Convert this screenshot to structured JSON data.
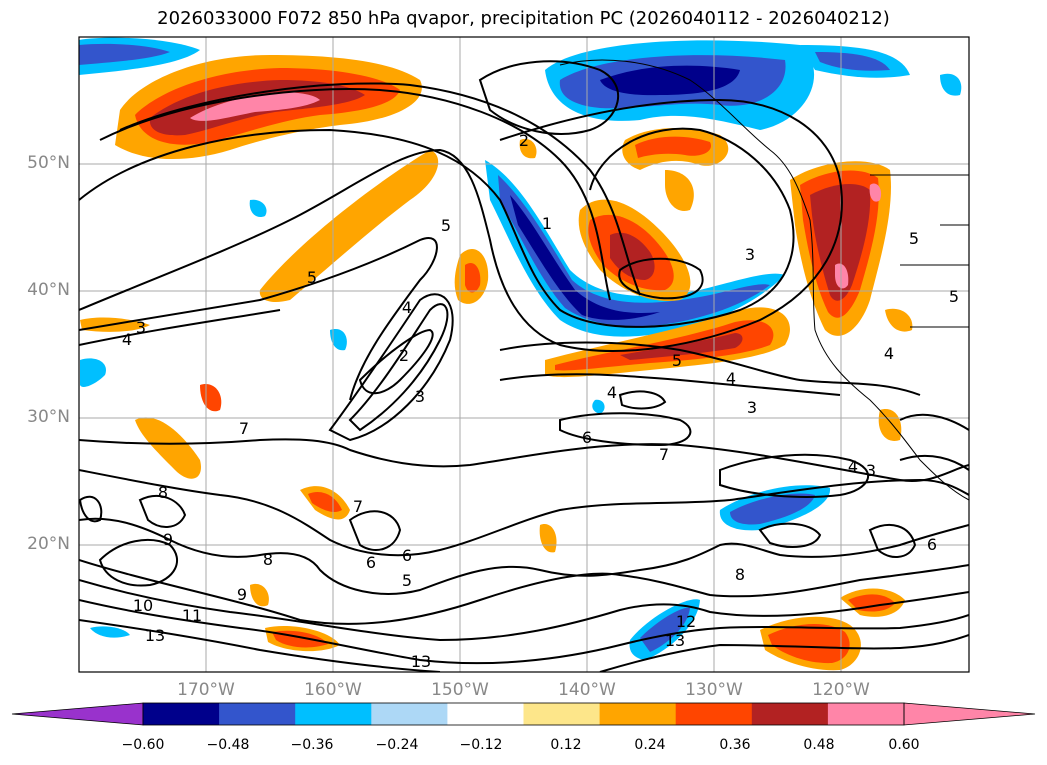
{
  "title": "2026033000 F072 850 hPa qvapor, precipitation PC (2026040112 - 2026040212)",
  "map": {
    "lat_labels": [
      "50°N",
      "40°N",
      "30°N",
      "20°N"
    ],
    "lon_labels": [
      "170°W",
      "160°W",
      "150°W",
      "140°W",
      "130°W",
      "120°W"
    ],
    "contour_labels": [
      "2",
      "5",
      "1",
      "3",
      "4",
      "4",
      "2",
      "3",
      "4",
      "4",
      "5",
      "6",
      "7",
      "7",
      "8",
      "9",
      "8",
      "7",
      "6",
      "5",
      "6",
      "10",
      "9",
      "11",
      "13",
      "13",
      "12",
      "13",
      "8",
      "3",
      "4",
      "5",
      "5",
      "4",
      "3",
      "6",
      "5",
      "3"
    ]
  },
  "colorbar": {
    "colors": [
      "#9932cc",
      "#00008b",
      "#3355cc",
      "#00bfff",
      "#add8f6",
      "#ffffff",
      "#fde68a",
      "#ffa500",
      "#ff4500",
      "#b22222",
      "#ff85a8",
      "#ff85a8"
    ],
    "tick_labels": [
      "−0.60",
      "−0.48",
      "−0.36",
      "−0.24",
      "−0.12",
      "0.12",
      "0.24",
      "0.36",
      "0.48",
      "0.60"
    ]
  }
}
